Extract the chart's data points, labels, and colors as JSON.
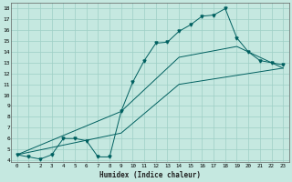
{
  "xlabel": "Humidex (Indice chaleur)",
  "bg_color": "#c5e8e0",
  "grid_color": "#9ecfc5",
  "line_color": "#006060",
  "xlim": [
    -0.5,
    23.5
  ],
  "ylim": [
    3.8,
    18.5
  ],
  "xticks": [
    0,
    1,
    2,
    3,
    4,
    5,
    6,
    7,
    8,
    9,
    10,
    11,
    12,
    13,
    14,
    15,
    16,
    17,
    18,
    19,
    20,
    21,
    22,
    23
  ],
  "yticks": [
    4,
    5,
    6,
    7,
    8,
    9,
    10,
    11,
    12,
    13,
    14,
    15,
    16,
    17,
    18
  ],
  "line1_x": [
    0,
    1,
    2,
    3,
    4,
    5,
    6,
    7,
    8,
    9,
    10,
    11,
    12,
    13,
    14,
    15,
    16,
    17,
    18,
    19,
    20,
    21,
    22,
    23
  ],
  "line1_y": [
    4.5,
    4.3,
    4.1,
    4.5,
    6.0,
    6.0,
    5.8,
    4.3,
    4.3,
    8.5,
    11.2,
    13.2,
    14.8,
    14.9,
    15.9,
    16.5,
    17.3,
    17.4,
    18.0,
    15.3,
    14.0,
    13.2,
    13.0,
    12.8
  ],
  "line2_x": [
    0,
    9,
    14,
    19,
    20,
    23
  ],
  "line2_y": [
    4.5,
    8.5,
    13.5,
    14.5,
    14.0,
    12.5
  ],
  "line3_x": [
    0,
    9,
    14,
    23
  ],
  "line3_y": [
    4.5,
    6.5,
    11.0,
    12.5
  ]
}
